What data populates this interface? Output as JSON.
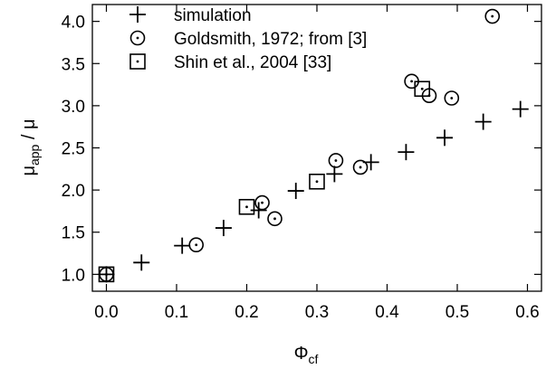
{
  "chart_data": {
    "type": "scatter",
    "xlim": [
      -0.02,
      0.62
    ],
    "ylim": [
      0.8,
      4.2
    ],
    "xticks": [
      "0.0",
      "0.1",
      "0.2",
      "0.3",
      "0.4",
      "0.5",
      "0.6"
    ],
    "yticks": [
      "1.0",
      "1.5",
      "2.0",
      "2.5",
      "3.0",
      "3.5",
      "4.0"
    ],
    "xlabel": {
      "main": "Φ",
      "sub": "cf"
    },
    "ylabel": {
      "main": "μ",
      "sub": "app",
      "rest": " / μ"
    },
    "grid": false,
    "legend_placement": "top-left",
    "series": [
      {
        "name": "simulation",
        "marker": "plus",
        "x": [
          0.0,
          0.05,
          0.108,
          0.167,
          0.217,
          0.27,
          0.325,
          0.377,
          0.427,
          0.482,
          0.537,
          0.59
        ],
        "y": [
          1.0,
          1.14,
          1.34,
          1.55,
          1.76,
          1.99,
          2.19,
          2.33,
          2.45,
          2.62,
          2.81,
          2.96
        ]
      },
      {
        "name": "Goldsmith, 1972; from [3]",
        "marker": "circle-dot",
        "x": [
          0.0,
          0.128,
          0.222,
          0.24,
          0.327,
          0.362,
          0.435,
          0.46,
          0.492,
          0.55
        ],
        "y": [
          1.0,
          1.35,
          1.85,
          1.66,
          2.35,
          2.27,
          3.29,
          3.12,
          3.09,
          4.06
        ]
      },
      {
        "name": "Shin et al., 2004 [33]",
        "marker": "square-dot",
        "x": [
          0.0,
          0.2,
          0.3,
          0.45
        ],
        "y": [
          1.0,
          1.8,
          2.1,
          3.2
        ]
      }
    ]
  }
}
